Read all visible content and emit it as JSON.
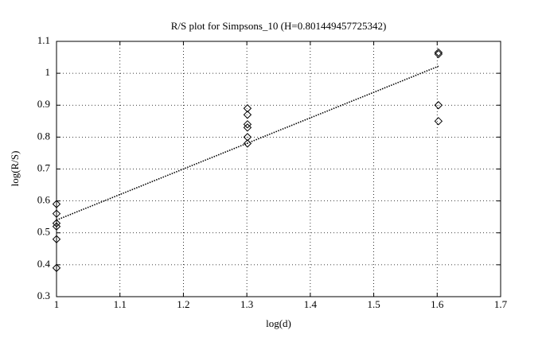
{
  "chart_data": {
    "type": "scatter",
    "title": "R/S plot for Simpsons_10 (H=0.801449457725342)",
    "x_label": "log(d)",
    "y_label": "log(R/S)",
    "xlim": [
      1,
      1.7
    ],
    "xticks": [
      1,
      1.1,
      1.2,
      1.3,
      1.4,
      1.5,
      1.6,
      1.7
    ],
    "ylim": [
      0.3,
      1.1
    ],
    "yticks": [
      0.3,
      0.4,
      0.5,
      0.6,
      0.7,
      0.8,
      0.9,
      1,
      1.1
    ],
    "grid": true,
    "series": [
      {
        "mode": "markers",
        "color": "#000000",
        "x": [
          1,
          1,
          1,
          1,
          1,
          1,
          1.301,
          1.301,
          1.301,
          1.301,
          1.301,
          1.301,
          1.602,
          1.602,
          1.602,
          1.602
        ],
        "values": [
          0.59,
          0.56,
          0.53,
          0.52,
          0.48,
          0.39,
          0.89,
          0.87,
          0.84,
          0.83,
          0.8,
          0.78,
          1.065,
          1.06,
          0.9,
          0.85
        ]
      },
      {
        "mode": "line",
        "color": "#000000",
        "x": [
          1,
          1.602
        ],
        "values": [
          0.54,
          1.022
        ]
      }
    ]
  }
}
